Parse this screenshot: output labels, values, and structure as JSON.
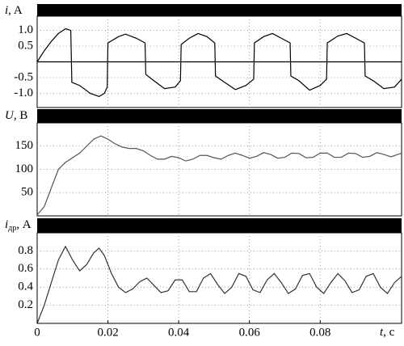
{
  "chart_data": [
    {
      "type": "line",
      "ylabel": "i",
      "ylabel_unit": ", A",
      "color": "#000000",
      "grid": true,
      "ylim": [
        -1.45,
        1.45
      ],
      "yticks": [
        {
          "value": 1,
          "label": "1.0"
        },
        0.5,
        -0.5,
        {
          "value": -1,
          "label": "-1.0"
        }
      ],
      "xlim": [
        0,
        0.103
      ],
      "x": [
        0,
        0.002,
        0.004,
        0.006,
        0.008,
        0.0095,
        0.0098,
        0.012,
        0.015,
        0.0175,
        0.019,
        0.0198,
        0.02,
        0.023,
        0.025,
        0.028,
        0.0305,
        0.0307,
        0.033,
        0.036,
        0.039,
        0.0405,
        0.0407,
        0.043,
        0.0455,
        0.048,
        0.0502,
        0.0504,
        0.053,
        0.056,
        0.059,
        0.0612,
        0.0614,
        0.064,
        0.0665,
        0.069,
        0.0715,
        0.0717,
        0.074,
        0.077,
        0.08,
        0.0818,
        0.082,
        0.085,
        0.0875,
        0.09,
        0.0925,
        0.0927,
        0.095,
        0.098,
        0.101,
        0.103
      ],
      "values": [
        0,
        0.35,
        0.65,
        0.9,
        1.05,
        1.0,
        -0.65,
        -0.75,
        -1.0,
        -1.1,
        -1.0,
        -0.8,
        0.6,
        0.8,
        0.88,
        0.75,
        0.6,
        -0.4,
        -0.6,
        -0.85,
        -0.8,
        -0.6,
        0.55,
        0.75,
        0.9,
        0.8,
        0.6,
        -0.45,
        -0.65,
        -0.88,
        -0.75,
        -0.55,
        0.6,
        0.8,
        0.9,
        0.75,
        0.6,
        -0.45,
        -0.6,
        -0.9,
        -0.75,
        -0.55,
        0.6,
        0.82,
        0.9,
        0.75,
        0.6,
        -0.45,
        -0.6,
        -0.85,
        -0.8,
        -0.55
      ]
    },
    {
      "type": "line",
      "ylabel": "U",
      "ylabel_unit": ", В",
      "color": "#555555",
      "grid": true,
      "ylim": [
        0,
        200
      ],
      "yticks": [
        150,
        100,
        50
      ],
      "xlim": [
        0,
        0.103
      ],
      "x": [
        0,
        0.002,
        0.004,
        0.006,
        0.008,
        0.01,
        0.012,
        0.014,
        0.016,
        0.018,
        0.02,
        0.022,
        0.024,
        0.026,
        0.028,
        0.03,
        0.032,
        0.034,
        0.036,
        0.038,
        0.04,
        0.042,
        0.044,
        0.046,
        0.048,
        0.05,
        0.052,
        0.054,
        0.056,
        0.058,
        0.06,
        0.062,
        0.064,
        0.066,
        0.068,
        0.07,
        0.072,
        0.074,
        0.076,
        0.078,
        0.08,
        0.082,
        0.084,
        0.086,
        0.088,
        0.09,
        0.092,
        0.094,
        0.096,
        0.098,
        0.1,
        0.103
      ],
      "values": [
        2,
        20,
        60,
        100,
        115,
        125,
        135,
        150,
        165,
        172,
        165,
        155,
        148,
        145,
        145,
        140,
        130,
        122,
        122,
        128,
        125,
        118,
        122,
        130,
        130,
        125,
        122,
        130,
        135,
        130,
        124,
        128,
        136,
        132,
        124,
        126,
        135,
        134,
        125,
        126,
        135,
        135,
        126,
        126,
        135,
        134,
        126,
        128,
        136,
        132,
        127,
        135
      ]
    },
    {
      "type": "line",
      "ylabel": "i",
      "ylabel_sub": "др",
      "ylabel_unit": ", A",
      "color": "#333333",
      "grid": true,
      "ylim": [
        0,
        1
      ],
      "yticks": [
        0.8,
        0.6,
        0.4,
        0.2
      ],
      "xlim": [
        0,
        0.103
      ],
      "xticks": [
        0,
        0.02,
        0.04,
        0.06,
        0.08
      ],
      "xlabel": "t",
      "xlabel_unit": ", c",
      "x": [
        0,
        0.002,
        0.004,
        0.006,
        0.008,
        0.01,
        0.012,
        0.014,
        0.016,
        0.0175,
        0.019,
        0.021,
        0.023,
        0.025,
        0.027,
        0.029,
        0.031,
        0.033,
        0.035,
        0.037,
        0.039,
        0.041,
        0.043,
        0.045,
        0.047,
        0.049,
        0.051,
        0.053,
        0.055,
        0.057,
        0.059,
        0.061,
        0.063,
        0.065,
        0.067,
        0.069,
        0.071,
        0.073,
        0.075,
        0.077,
        0.079,
        0.081,
        0.083,
        0.085,
        0.087,
        0.089,
        0.091,
        0.093,
        0.095,
        0.097,
        0.099,
        0.101,
        0.103
      ],
      "values": [
        0,
        0.2,
        0.45,
        0.7,
        0.85,
        0.7,
        0.58,
        0.65,
        0.78,
        0.83,
        0.75,
        0.55,
        0.4,
        0.34,
        0.38,
        0.46,
        0.5,
        0.42,
        0.34,
        0.36,
        0.48,
        0.48,
        0.35,
        0.35,
        0.5,
        0.55,
        0.43,
        0.33,
        0.4,
        0.55,
        0.52,
        0.37,
        0.34,
        0.48,
        0.55,
        0.45,
        0.33,
        0.38,
        0.53,
        0.55,
        0.4,
        0.33,
        0.45,
        0.55,
        0.47,
        0.34,
        0.37,
        0.52,
        0.55,
        0.4,
        0.33,
        0.45,
        0.52
      ]
    }
  ]
}
